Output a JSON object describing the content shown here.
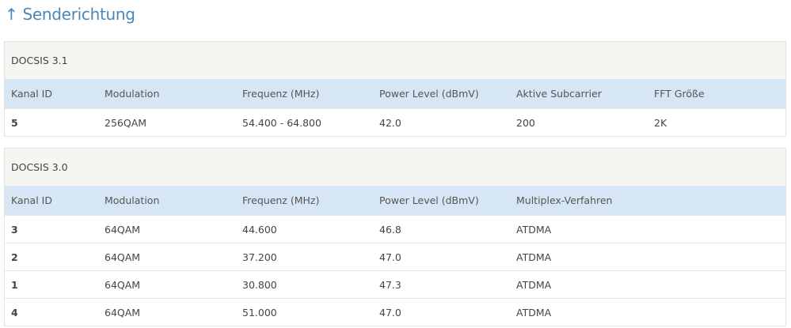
{
  "title": "↑ Senderichtung",
  "docsis31": {
    "caption": "DOCSIS 3.1",
    "headers": [
      "Kanal ID",
      "Modulation",
      "Frequenz (MHz)",
      "Power Level (dBmV)",
      "Aktive Subcarrier",
      "FFT Größe"
    ],
    "rows": [
      [
        "5",
        "256QAM",
        "54.400 - 64.800",
        "42.0",
        "200",
        "2K"
      ]
    ]
  },
  "docsis30": {
    "caption": "DOCSIS 3.0",
    "headers": [
      "Kanal ID",
      "Modulation",
      "Frequenz (MHz)",
      "Power Level (dBmV)",
      "Multiplex-Verfahren"
    ],
    "rows": [
      [
        "3",
        "64QAM",
        "44.600",
        "46.8",
        "ATDMA"
      ],
      [
        "2",
        "64QAM",
        "37.200",
        "47.0",
        "ATDMA"
      ],
      [
        "1",
        "64QAM",
        "30.800",
        "47.3",
        "ATDMA"
      ],
      [
        "4",
        "64QAM",
        "51.000",
        "47.0",
        "ATDMA"
      ]
    ]
  }
}
